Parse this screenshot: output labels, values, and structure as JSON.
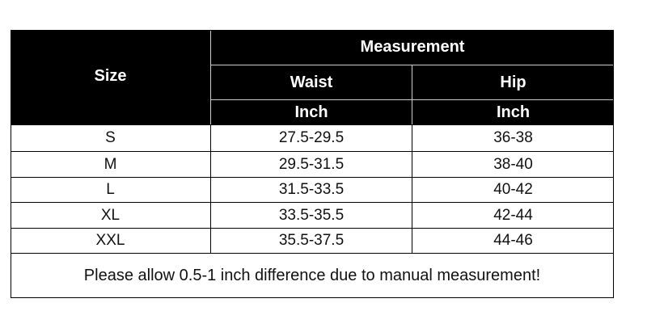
{
  "table": {
    "header": {
      "size": "Size",
      "group": "Measurement",
      "columns": [
        "Waist",
        "Hip"
      ],
      "units": [
        "Inch",
        "Inch"
      ]
    },
    "rows": [
      [
        "S",
        "27.5-29.5",
        "36-38"
      ],
      [
        "M",
        "29.5-31.5",
        "38-40"
      ],
      [
        "L",
        "31.5-33.5",
        "40-42"
      ],
      [
        "XL",
        "33.5-35.5",
        "42-44"
      ],
      [
        "XXL",
        "35.5-37.5",
        "44-46"
      ]
    ],
    "note": "Please allow 0.5-1 inch difference due to manual measurement!"
  }
}
